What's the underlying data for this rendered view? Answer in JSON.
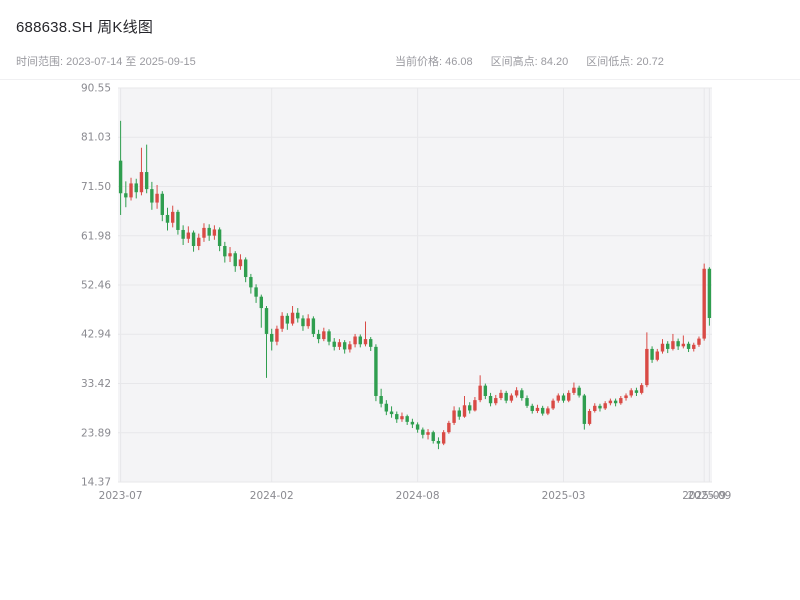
{
  "header": {
    "title": "688638.SH 周K线图",
    "time_range": "时间范围: 2023-07-14 至 2025-09-15",
    "stats": [
      "当前价格: 46.08",
      "区间高点: 84.20",
      "区间低点: 20.72"
    ]
  },
  "chart_data": {
    "type": "candlestick",
    "title": "688638.SH 周K线图",
    "symbol": "688638.SH",
    "interval": "weekly",
    "date_range": {
      "start": "2023-07-14",
      "end": "2025-09-15"
    },
    "current_price": 46.08,
    "range_high": 84.2,
    "range_low": 20.72,
    "ylim": [
      14.37,
      90.55
    ],
    "y_ticks": [
      14.37,
      23.89,
      33.42,
      42.94,
      52.46,
      61.98,
      71.5,
      81.03,
      90.55
    ],
    "y_tick_labels": [
      "14.37",
      "23.89",
      "33.42",
      "42.94",
      "52.46",
      "61.98",
      "71.50",
      "81.03",
      "90.55"
    ],
    "x_ticks": [
      {
        "index": 0,
        "label": "2023-07"
      },
      {
        "index": 29,
        "label": "2024-02"
      },
      {
        "index": 57,
        "label": "2024-08"
      },
      {
        "index": 85,
        "label": "2025-03"
      },
      {
        "index": 112,
        "label": "2025-09"
      },
      {
        "index": 113,
        "label": "2025-09"
      }
    ],
    "grid": true,
    "legend": false,
    "colors": {
      "up": "#d94a45",
      "down": "#2f9e4f",
      "plot_bg": "#f4f4f6",
      "grid": "#e7e7ea",
      "text": "#8a8a90"
    },
    "candles_format": [
      "open",
      "high",
      "low",
      "close"
    ],
    "candles": [
      [
        76.5,
        84.2,
        66.0,
        70.2
      ],
      [
        70.2,
        72.5,
        67.5,
        69.4
      ],
      [
        69.4,
        73.2,
        68.8,
        72.1
      ],
      [
        72.1,
        73.0,
        69.2,
        70.4
      ],
      [
        70.4,
        79.0,
        69.8,
        74.3
      ],
      [
        74.3,
        79.6,
        70.2,
        71.0
      ],
      [
        71.0,
        72.4,
        67.0,
        68.4
      ],
      [
        68.4,
        71.8,
        67.2,
        70.1
      ],
      [
        70.1,
        70.6,
        64.8,
        66.0
      ],
      [
        66.0,
        67.4,
        63.0,
        64.5
      ],
      [
        64.5,
        67.8,
        63.6,
        66.6
      ],
      [
        66.6,
        67.0,
        62.2,
        63.1
      ],
      [
        63.1,
        64.0,
        60.2,
        61.4
      ],
      [
        61.4,
        63.8,
        60.6,
        62.6
      ],
      [
        62.6,
        63.0,
        58.9,
        60.0
      ],
      [
        60.0,
        62.4,
        59.2,
        61.6
      ],
      [
        61.6,
        64.4,
        60.8,
        63.5
      ],
      [
        63.5,
        64.2,
        61.0,
        62.0
      ],
      [
        62.0,
        64.0,
        61.2,
        63.2
      ],
      [
        63.2,
        63.6,
        59.0,
        60.0
      ],
      [
        60.0,
        60.8,
        56.8,
        58.0
      ],
      [
        58.0,
        59.8,
        56.9,
        58.6
      ],
      [
        58.6,
        59.0,
        55.0,
        56.1
      ],
      [
        56.1,
        58.4,
        55.4,
        57.4
      ],
      [
        57.4,
        57.8,
        53.0,
        54.0
      ],
      [
        54.0,
        54.6,
        50.8,
        52.0
      ],
      [
        52.0,
        52.6,
        49.0,
        50.2
      ],
      [
        50.2,
        50.6,
        44.2,
        48.0
      ],
      [
        48.0,
        48.4,
        34.5,
        43.0
      ],
      [
        43.0,
        44.0,
        39.8,
        41.5
      ],
      [
        41.5,
        44.6,
        40.8,
        44.0
      ],
      [
        44.0,
        47.2,
        43.4,
        46.5
      ],
      [
        46.5,
        47.0,
        43.8,
        45.0
      ],
      [
        45.0,
        48.4,
        44.6,
        47.1
      ],
      [
        47.1,
        48.0,
        45.2,
        46.0
      ],
      [
        46.0,
        46.6,
        43.6,
        44.5
      ],
      [
        44.5,
        46.8,
        44.0,
        46.0
      ],
      [
        46.0,
        46.4,
        42.4,
        43.0
      ],
      [
        43.0,
        43.8,
        41.2,
        42.0
      ],
      [
        42.0,
        44.2,
        41.6,
        43.5
      ],
      [
        43.5,
        43.9,
        40.8,
        41.5
      ],
      [
        41.5,
        42.2,
        39.8,
        40.5
      ],
      [
        40.5,
        42.0,
        39.9,
        41.4
      ],
      [
        41.4,
        41.8,
        39.2,
        40.0
      ],
      [
        40.0,
        41.6,
        39.4,
        41.0
      ],
      [
        41.0,
        43.0,
        40.4,
        42.5
      ],
      [
        42.5,
        42.9,
        40.4,
        41.0
      ],
      [
        41.0,
        45.4,
        40.6,
        42.0
      ],
      [
        42.0,
        42.4,
        39.7,
        40.5
      ],
      [
        40.5,
        41.0,
        30.0,
        31.0
      ],
      [
        31.0,
        32.4,
        28.8,
        29.5
      ],
      [
        29.5,
        30.2,
        27.3,
        28.0
      ],
      [
        28.0,
        29.0,
        26.8,
        27.5
      ],
      [
        27.5,
        28.0,
        25.8,
        26.5
      ],
      [
        26.5,
        27.8,
        26.0,
        27.1
      ],
      [
        27.1,
        27.4,
        25.4,
        26.0
      ],
      [
        26.0,
        26.6,
        24.8,
        25.5
      ],
      [
        25.5,
        25.9,
        23.9,
        24.5
      ],
      [
        24.5,
        24.9,
        22.8,
        23.5
      ],
      [
        23.5,
        24.6,
        22.6,
        24.0
      ],
      [
        24.0,
        24.3,
        21.8,
        22.3
      ],
      [
        22.3,
        23.0,
        20.72,
        21.8
      ],
      [
        21.8,
        24.4,
        21.5,
        24.0
      ],
      [
        24.0,
        26.2,
        23.7,
        25.8
      ],
      [
        25.8,
        29.0,
        25.4,
        28.2
      ],
      [
        28.2,
        28.8,
        26.4,
        27.0
      ],
      [
        27.0,
        31.0,
        26.8,
        29.2
      ],
      [
        29.2,
        29.8,
        27.6,
        28.2
      ],
      [
        28.2,
        30.8,
        28.0,
        30.2
      ],
      [
        30.2,
        35.0,
        29.8,
        33.0
      ],
      [
        33.0,
        33.4,
        30.4,
        31.0
      ],
      [
        31.0,
        31.6,
        29.0,
        29.6
      ],
      [
        29.6,
        31.2,
        29.2,
        30.6
      ],
      [
        30.6,
        32.2,
        30.2,
        31.6
      ],
      [
        31.6,
        32.0,
        29.6,
        30.1
      ],
      [
        30.1,
        31.5,
        29.7,
        31.1
      ],
      [
        31.1,
        32.7,
        30.7,
        32.1
      ],
      [
        32.1,
        32.5,
        30.1,
        30.6
      ],
      [
        30.6,
        31.1,
        28.7,
        29.1
      ],
      [
        29.1,
        29.5,
        27.6,
        28.1
      ],
      [
        28.1,
        29.3,
        27.7,
        28.7
      ],
      [
        28.7,
        29.1,
        27.2,
        27.6
      ],
      [
        27.6,
        29.0,
        27.3,
        28.6
      ],
      [
        28.6,
        30.5,
        28.3,
        30.1
      ],
      [
        30.1,
        31.5,
        29.7,
        31.1
      ],
      [
        31.1,
        31.5,
        29.7,
        30.1
      ],
      [
        30.1,
        32.1,
        29.8,
        31.6
      ],
      [
        31.6,
        33.6,
        31.2,
        32.6
      ],
      [
        32.6,
        33.0,
        30.7,
        31.1
      ],
      [
        31.1,
        31.4,
        24.5,
        25.6
      ],
      [
        25.6,
        28.5,
        25.3,
        28.1
      ],
      [
        28.1,
        29.6,
        27.8,
        29.1
      ],
      [
        29.1,
        29.5,
        28.0,
        28.6
      ],
      [
        28.6,
        30.0,
        28.3,
        29.6
      ],
      [
        29.6,
        30.5,
        29.2,
        30.1
      ],
      [
        30.1,
        30.5,
        29.0,
        29.6
      ],
      [
        29.6,
        31.0,
        29.3,
        30.6
      ],
      [
        30.6,
        31.5,
        30.1,
        31.1
      ],
      [
        31.1,
        32.5,
        30.7,
        32.1
      ],
      [
        32.1,
        32.6,
        31.0,
        31.6
      ],
      [
        31.6,
        33.5,
        31.3,
        33.1
      ],
      [
        33.1,
        43.3,
        32.7,
        40.1
      ],
      [
        40.1,
        40.6,
        37.4,
        38.0
      ],
      [
        38.0,
        40.1,
        37.7,
        39.6
      ],
      [
        39.6,
        42.0,
        39.2,
        41.1
      ],
      [
        41.1,
        41.6,
        39.3,
        40.1
      ],
      [
        40.1,
        43.0,
        39.8,
        41.6
      ],
      [
        41.6,
        42.1,
        39.9,
        40.6
      ],
      [
        40.6,
        42.7,
        40.2,
        41.1
      ],
      [
        41.1,
        41.5,
        39.5,
        40.1
      ],
      [
        40.1,
        41.3,
        39.6,
        40.9
      ],
      [
        40.9,
        42.5,
        40.5,
        42.1
      ],
      [
        42.1,
        56.6,
        41.7,
        55.6
      ],
      [
        55.6,
        55.9,
        44.6,
        46.08
      ]
    ]
  }
}
